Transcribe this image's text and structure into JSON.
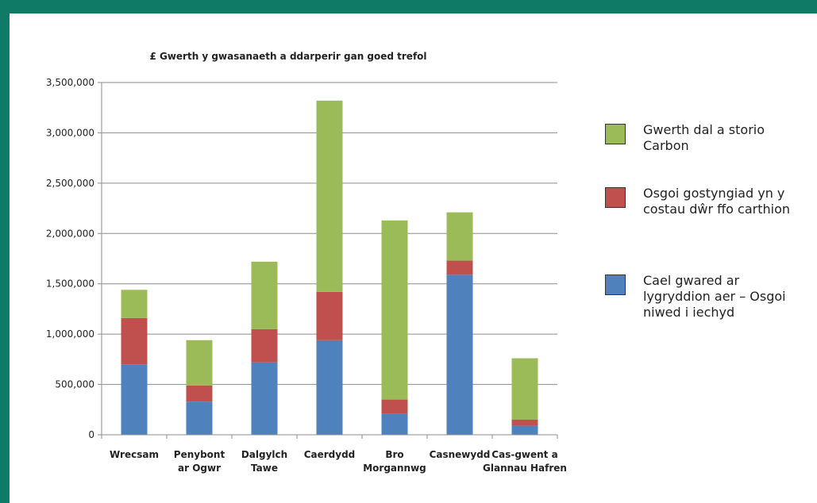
{
  "chart_data": {
    "type": "bar",
    "stacked": true,
    "title": "£ Gwerth y gwasanaeth a ddarperir gan goed trefol",
    "categories": [
      [
        "Wrecsam"
      ],
      [
        "Penybont",
        "ar Ogwr"
      ],
      [
        "Dalgylch",
        "Tawe"
      ],
      [
        "Caerdydd"
      ],
      [
        "Bro",
        "Morgannwg"
      ],
      [
        "Casnewydd"
      ],
      [
        "Cas-gwent a",
        "Glannau Hafren"
      ]
    ],
    "series": [
      {
        "name": "Cael gwared ar lygryddion aer – Osgoi niwed i iechyd",
        "color": "#4f81bd",
        "values": [
          700000,
          330000,
          720000,
          940000,
          210000,
          1590000,
          90000
        ]
      },
      {
        "name": "Osgoi gostyngiad yn y costau dŵr ffo carthion",
        "color": "#c0504d",
        "values": [
          460000,
          160000,
          330000,
          480000,
          140000,
          140000,
          60000
        ]
      },
      {
        "name": "Gwerth dal a storio Carbon",
        "color": "#9bbb59",
        "values": [
          280000,
          450000,
          670000,
          1900000,
          1780000,
          480000,
          610000
        ]
      }
    ],
    "ylim": [
      0,
      3500000
    ],
    "yticks": [
      0,
      500000,
      1000000,
      1500000,
      2000000,
      2500000,
      3000000,
      3500000
    ],
    "ytick_labels": [
      "0",
      "500,000",
      "1,000,000",
      "1,500,000",
      "2,000,000",
      "2,500,000",
      "3,000,000",
      "3,500,000"
    ],
    "grid": true,
    "legend_position": "right"
  },
  "legend": [
    {
      "label": "Gwerth dal a storio Carbon",
      "color": "#9bbb59"
    },
    {
      "label": "Osgoi gostyngiad yn y costau dŵr ffo carthion",
      "color": "#c0504d"
    },
    {
      "label": "Cael gwared ar lygryddion aer – Osgoi niwed i iechyd",
      "color": "#4f81bd"
    }
  ]
}
